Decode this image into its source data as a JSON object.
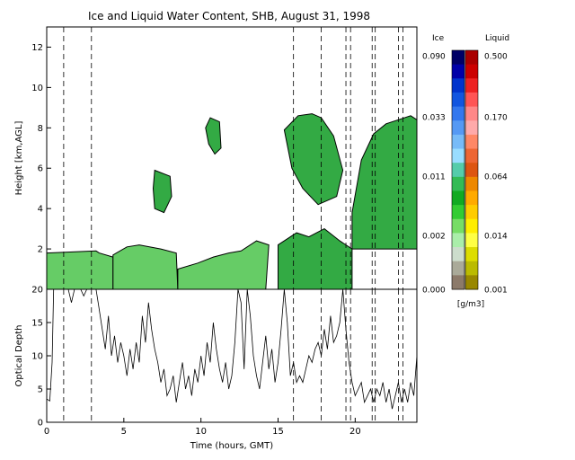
{
  "chart_data": [
    {
      "type": "heatmap",
      "title": "Ice and Liquid Water Content, SHB, August 31, 1998",
      "ylabel": "Height [km,AGL]",
      "xlim": [
        0,
        24
      ],
      "ylim": [
        0,
        13
      ],
      "yticks": [
        2,
        4,
        6,
        8,
        10,
        12
      ],
      "dashed_times": [
        1.1,
        2.9,
        16.0,
        17.8,
        19.4,
        19.7,
        21.1,
        21.3,
        22.8,
        23.1
      ],
      "cloud_regions": [
        {
          "phase": "mixed",
          "x": [
            0.0,
            3.2,
            3.4,
            4.3,
            4.3,
            3.5,
            2.6,
            1.2,
            0.0
          ],
          "y": [
            1.8,
            1.9,
            1.8,
            1.6,
            0.0,
            0.0,
            0.0,
            0.0,
            0.0
          ]
        },
        {
          "phase": "mixed",
          "x": [
            4.3,
            5.2,
            6.0,
            7.4,
            8.4,
            8.5,
            7.0,
            5.5,
            4.3
          ],
          "y": [
            1.7,
            2.1,
            2.2,
            2.0,
            1.8,
            0.0,
            0.0,
            0.0,
            0.0
          ]
        },
        {
          "phase": "mixed",
          "x": [
            8.5,
            9.8,
            10.8,
            11.8,
            12.6,
            13.6,
            14.4,
            14.2,
            13.0,
            11.0,
            8.5
          ],
          "y": [
            1.0,
            1.3,
            1.6,
            1.8,
            1.9,
            2.4,
            2.2,
            0.0,
            0.0,
            0.0,
            0.0
          ]
        },
        {
          "phase": "ice",
          "x": [
            10.6,
            11.2,
            11.3,
            10.9,
            10.5,
            10.3
          ],
          "y": [
            8.5,
            8.3,
            7.0,
            6.7,
            7.2,
            8.0
          ]
        },
        {
          "phase": "ice",
          "x": [
            7.0,
            8.0,
            8.1,
            7.6,
            7.0,
            6.9
          ],
          "y": [
            5.9,
            5.6,
            4.6,
            3.8,
            4.0,
            5.0
          ]
        },
        {
          "phase": "ice",
          "x": [
            15.0,
            16.2,
            17.0,
            18.0,
            19.0,
            19.8,
            19.8,
            18.4,
            17.5,
            16.0,
            15.0
          ],
          "y": [
            2.2,
            2.8,
            2.6,
            3.0,
            2.4,
            2.0,
            0.0,
            0.0,
            0.0,
            0.0,
            0.0
          ]
        },
        {
          "phase": "ice",
          "x": [
            15.4,
            16.3,
            17.2,
            17.8,
            18.6,
            19.2,
            18.8,
            17.6,
            16.6,
            15.9
          ],
          "y": [
            7.9,
            8.6,
            8.7,
            8.5,
            7.6,
            5.9,
            4.6,
            4.2,
            5.0,
            6.0
          ]
        },
        {
          "phase": "ice",
          "x": [
            19.8,
            20.4,
            21.2,
            22.0,
            22.8,
            23.6,
            24.0,
            24.0,
            19.8
          ],
          "y": [
            3.8,
            6.4,
            7.7,
            8.2,
            8.4,
            8.6,
            8.4,
            2.0,
            2.0
          ]
        }
      ],
      "colorbar": {
        "ice_label": "Ice",
        "liquid_label": "Liquid",
        "units": "[g/m3]",
        "ice_ticks": [
          "0.090",
          "0.033",
          "0.011",
          "0.002",
          "0.000"
        ],
        "liquid_ticks": [
          "0.500",
          "0.170",
          "0.064",
          "0.014",
          "0.001"
        ],
        "ice_colors": [
          "#000066",
          "#0000a8",
          "#0033cc",
          "#1155e0",
          "#3377ee",
          "#5599f4",
          "#77bbf8",
          "#99ddff",
          "#55ccaa",
          "#33bb55",
          "#11aa22",
          "#33cc33",
          "#77dd66",
          "#aaeeaa",
          "#ccddcc",
          "#aaaa99",
          "#8c7a6a"
        ],
        "liquid_colors": [
          "#aa0000",
          "#cc0000",
          "#ee2222",
          "#ff5555",
          "#ff8888",
          "#ffaaaa",
          "#ff8866",
          "#ee6633",
          "#dd5511",
          "#ee8800",
          "#ffaa00",
          "#ffcc00",
          "#ffee00",
          "#ffff44",
          "#dddd00",
          "#bbbb00",
          "#998800"
        ]
      }
    },
    {
      "type": "line",
      "xlabel": "Time (hours, GMT)",
      "ylabel": "Optical Depth",
      "xlim": [
        0,
        24
      ],
      "ylim": [
        0,
        20
      ],
      "xticks": [
        0,
        5,
        10,
        15,
        20
      ],
      "yticks": [
        0,
        5,
        10,
        15,
        20
      ],
      "dashed_times": [
        1.1,
        2.9,
        16.0,
        17.8,
        19.4,
        19.7,
        21.1,
        21.3,
        22.8,
        23.1
      ],
      "x": [
        0.0,
        0.2,
        0.35,
        0.45,
        0.6,
        0.8,
        1.0,
        1.2,
        1.4,
        1.6,
        1.8,
        2.0,
        2.2,
        2.4,
        2.6,
        2.8,
        3.0,
        3.2,
        3.4,
        3.6,
        3.8,
        4.0,
        4.2,
        4.4,
        4.6,
        4.8,
        5.0,
        5.2,
        5.4,
        5.6,
        5.8,
        6.0,
        6.2,
        6.4,
        6.6,
        6.8,
        7.0,
        7.2,
        7.4,
        7.6,
        7.8,
        8.0,
        8.2,
        8.4,
        8.6,
        8.8,
        9.0,
        9.2,
        9.4,
        9.6,
        9.8,
        10.0,
        10.2,
        10.4,
        10.6,
        10.8,
        11.0,
        11.2,
        11.4,
        11.6,
        11.8,
        12.0,
        12.2,
        12.4,
        12.6,
        12.8,
        13.0,
        13.2,
        13.4,
        13.6,
        13.8,
        14.0,
        14.2,
        14.4,
        14.6,
        14.8,
        15.0,
        15.2,
        15.4,
        15.6,
        15.8,
        16.0,
        16.2,
        16.4,
        16.6,
        16.8,
        17.0,
        17.2,
        17.4,
        17.6,
        17.8,
        18.0,
        18.2,
        18.4,
        18.6,
        18.8,
        19.0,
        19.2,
        19.4,
        19.6,
        19.8,
        20.0,
        20.2,
        20.4,
        20.6,
        20.8,
        21.0,
        21.2,
        21.4,
        21.6,
        21.8,
        22.0,
        22.2,
        22.4,
        22.6,
        22.8,
        23.0,
        23.2,
        23.4,
        23.6,
        23.8,
        24.0
      ],
      "y": [
        3.5,
        3.2,
        9.0,
        20.0,
        20.0,
        20.0,
        20.0,
        20.0,
        20.0,
        18.0,
        20.0,
        20.0,
        20.0,
        19.0,
        20.0,
        20.0,
        20.0,
        20.0,
        17.0,
        14.0,
        11.0,
        16.0,
        10.0,
        13.0,
        9.0,
        12.0,
        10.0,
        7.0,
        11.0,
        8.0,
        12.0,
        9.0,
        16.0,
        12.0,
        18.0,
        14.0,
        11.0,
        9.0,
        6.0,
        8.0,
        4.0,
        5.0,
        7.0,
        3.0,
        6.0,
        9.0,
        5.0,
        7.0,
        4.0,
        8.0,
        6.0,
        10.0,
        7.0,
        12.0,
        9.0,
        15.0,
        11.0,
        8.0,
        6.0,
        9.0,
        5.0,
        7.0,
        12.0,
        20.0,
        18.0,
        8.0,
        20.0,
        16.0,
        10.0,
        7.0,
        5.0,
        9.0,
        13.0,
        8.0,
        11.0,
        6.0,
        9.0,
        14.0,
        20.0,
        15.0,
        7.0,
        9.0,
        6.0,
        7.0,
        6.0,
        8.0,
        10.0,
        9.0,
        11.0,
        12.0,
        10.0,
        14.0,
        11.0,
        16.0,
        12.0,
        13.0,
        15.0,
        20.0,
        14.0,
        9.0,
        6.0,
        4.0,
        5.0,
        6.0,
        3.0,
        4.0,
        5.0,
        3.0,
        5.0,
        4.0,
        6.0,
        3.0,
        5.0,
        2.0,
        4.0,
        6.0,
        3.0,
        5.0,
        3.0,
        6.0,
        4.0,
        10.0
      ]
    }
  ]
}
